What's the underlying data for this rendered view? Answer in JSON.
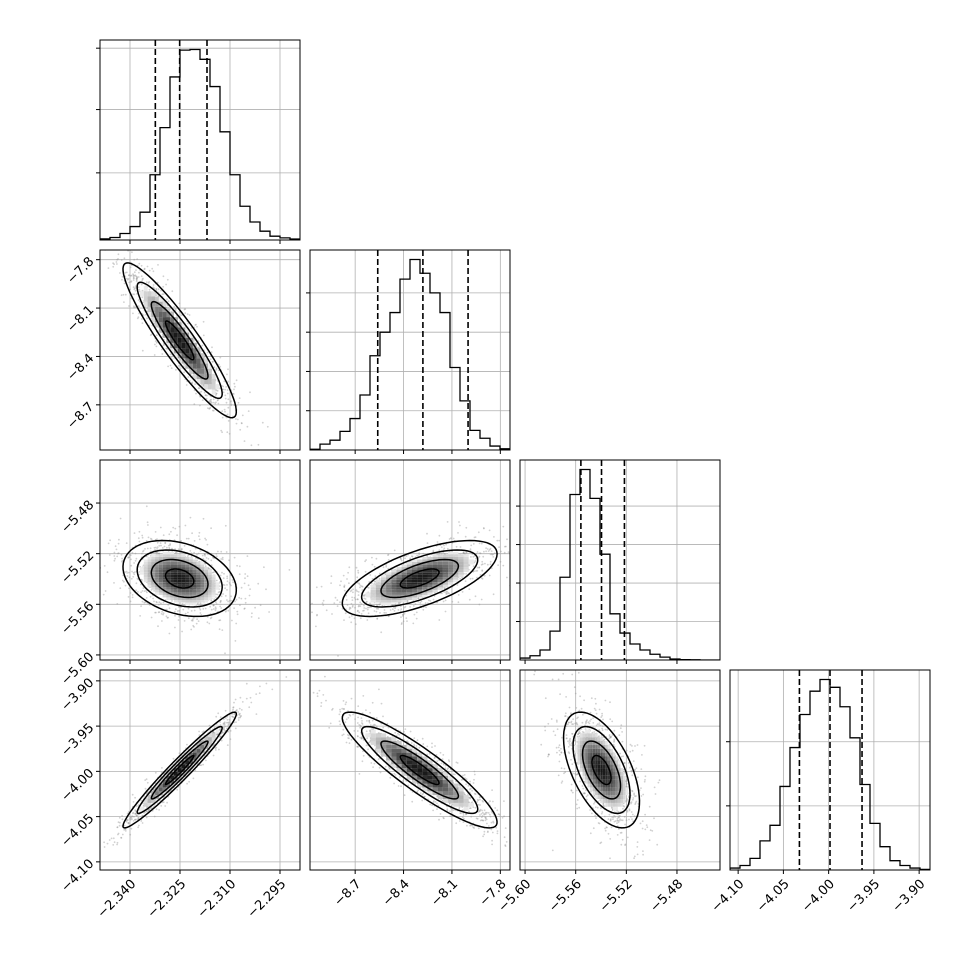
{
  "chart_data": {
    "type": "corner",
    "grid": true,
    "parameters": [
      {
        "id": "p0",
        "range": [
          -2.349,
          -2.289
        ],
        "ticks": [
          -2.34,
          -2.325,
          -2.31,
          -2.295
        ],
        "tick_labels": [
          "−2.340",
          "−2.325",
          "−2.310",
          "−2.295"
        ],
        "quantiles": [
          -2.3324,
          -2.3251,
          -2.3169
        ],
        "hist_density": [
          0.6,
          1.3,
          3.4,
          7.0,
          14.5,
          34.0,
          58.6,
          85.0,
          99.0,
          99.3,
          94.2,
          80.0,
          56.4,
          34.0,
          17.6,
          9.4,
          4.6,
          2.0,
          1.1,
          0.5
        ],
        "hist_ticks_density": [
          35,
          68,
          100
        ]
      },
      {
        "id": "p1",
        "range": [
          -8.98,
          -7.74
        ],
        "ticks": [
          -8.7,
          -8.4,
          -8.1,
          -7.8
        ],
        "tick_labels": [
          "−8.7",
          "−8.4",
          "−8.1",
          "−7.8"
        ],
        "quantiles": [
          -8.56,
          -8.28,
          -8.0
        ],
        "hist_density": [
          0.4,
          3.0,
          5.0,
          9.5,
          16.0,
          28.0,
          48.0,
          60.0,
          70.0,
          87.0,
          97.0,
          90.0,
          80.0,
          70.0,
          42.0,
          25.0,
          10.0,
          6.0,
          2.0,
          0.6
        ],
        "hist_ticks_density": [
          20,
          40,
          60,
          80
        ]
      },
      {
        "id": "p2",
        "range": [
          -5.604,
          -5.446
        ],
        "ticks": [
          -5.6,
          -5.56,
          -5.52,
          -5.48
        ],
        "tick_labels": [
          "−5.60",
          "−5.56",
          "−5.52",
          "−5.48"
        ],
        "quantiles": [
          -5.5559,
          -5.5396,
          -5.5215
        ],
        "hist_density": [
          1.0,
          2.2,
          5.2,
          15.0,
          43.0,
          86.0,
          99.0,
          84.0,
          55.0,
          24.0,
          14.0,
          8.3,
          5.2,
          3.0,
          1.5,
          0.5,
          0.2,
          0.1,
          0,
          0
        ],
        "hist_ticks_density": [
          20,
          40,
          60,
          80
        ]
      },
      {
        "id": "p3",
        "range": [
          -4.109,
          -3.888
        ],
        "ticks": [
          -4.1,
          -4.05,
          -4.0,
          -3.95,
          -3.9
        ],
        "tick_labels": [
          "−4.10",
          "−4.05",
          "−4.00",
          "−3.95",
          "−3.90"
        ],
        "quantiles": [
          -4.0323,
          -3.9985,
          -3.9631
        ],
        "hist_density": [
          1.0,
          2.3,
          6.0,
          15.0,
          23.0,
          43.0,
          63.0,
          80.0,
          92.0,
          98.0,
          94.0,
          84.0,
          68.0,
          44.0,
          24.0,
          12.0,
          4.8,
          2.3,
          1.0,
          0.3
        ],
        "hist_ticks_density": [
          33,
          66
        ]
      }
    ],
    "correlations": {
      "1,0": -0.92,
      "2,0": -0.3,
      "2,1": 0.65,
      "3,0": 0.97,
      "3,1": -0.9,
      "3,2": -0.55
    },
    "marginal_sigma_scale": {
      "p0": 0.0085,
      "p1": 0.24,
      "p2": 0.015,
      "p3": 0.032
    },
    "centers": {
      "p0": -2.3251,
      "p1": -8.3,
      "p2": -5.5396,
      "p3": -3.9985
    },
    "colors": {
      "line": "#000000",
      "grid": "#b0b0b0",
      "density_max": "#000000",
      "density_min": "#ffffff",
      "scatter": "#999999"
    }
  }
}
